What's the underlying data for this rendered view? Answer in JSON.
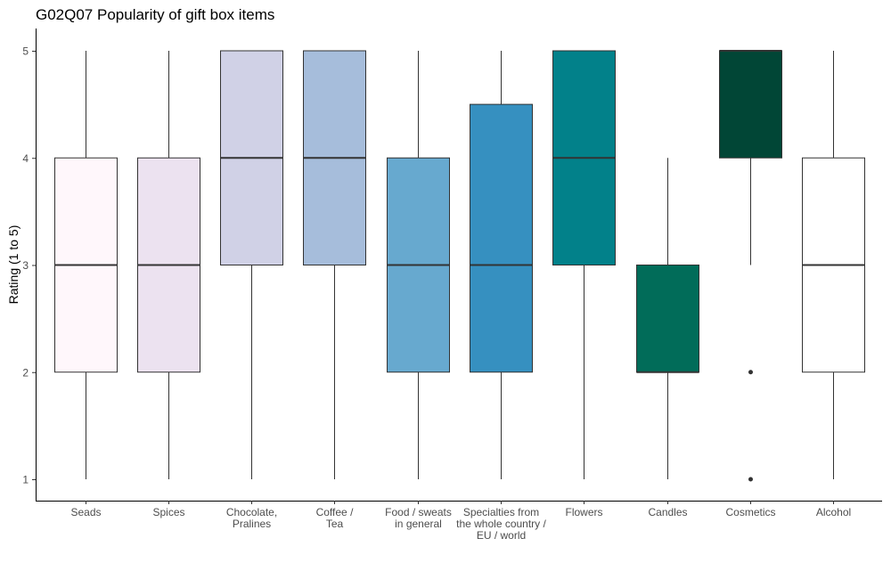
{
  "chart_data": {
    "type": "boxplot",
    "title": "G02Q07 Popularity of gift box items",
    "xlabel": "",
    "ylabel": "Rating (1 to 5)",
    "ylim": [
      0.8,
      5.2
    ],
    "yticks": [
      1,
      2,
      3,
      4,
      5
    ],
    "grid": false,
    "legend": "none",
    "categories": [
      [
        "Seads"
      ],
      [
        "Spices"
      ],
      [
        "Chocolate,",
        "Pralines"
      ],
      [
        "Coffee /",
        "Tea"
      ],
      [
        "Food / sweats",
        "in general"
      ],
      [
        "Specialties from",
        "the whole country /",
        "EU / world"
      ],
      [
        "Flowers"
      ],
      [
        "Candles"
      ],
      [
        "Cosmetics"
      ],
      [
        "Alcohol"
      ]
    ],
    "boxes": [
      {
        "min": 1,
        "q1": 2,
        "median": 3,
        "q3": 4,
        "max": 5,
        "outliers": [],
        "color": "#fff7fb"
      },
      {
        "min": 1,
        "q1": 2,
        "median": 3,
        "q3": 4,
        "max": 5,
        "outliers": [],
        "color": "#ece2f0"
      },
      {
        "min": 1,
        "q1": 3,
        "median": 4,
        "q3": 5,
        "max": 5,
        "outliers": [],
        "color": "#d0d1e6"
      },
      {
        "min": 1,
        "q1": 3,
        "median": 4,
        "q3": 5,
        "max": 5,
        "outliers": [],
        "color": "#a6bddb"
      },
      {
        "min": 1,
        "q1": 2,
        "median": 3,
        "q3": 4,
        "max": 5,
        "outliers": [],
        "color": "#67a9cf"
      },
      {
        "min": 1,
        "q1": 2,
        "median": 3,
        "q3": 4.5,
        "max": 5,
        "outliers": [],
        "color": "#3690c0"
      },
      {
        "min": 1,
        "q1": 3,
        "median": 4,
        "q3": 5,
        "max": 5,
        "outliers": [],
        "color": "#02818a"
      },
      {
        "min": 1,
        "q1": 2,
        "median": 2,
        "q3": 3,
        "max": 4,
        "outliers": [],
        "color": "#016c59"
      },
      {
        "min": 3,
        "q1": 4,
        "median": 5,
        "q3": 5,
        "max": 5,
        "outliers": [
          2,
          1
        ],
        "color": "#014636"
      },
      {
        "min": 1,
        "q1": 2,
        "median": 3,
        "q3": 4,
        "max": 5,
        "outliers": [],
        "color": "#ffffff"
      }
    ]
  }
}
